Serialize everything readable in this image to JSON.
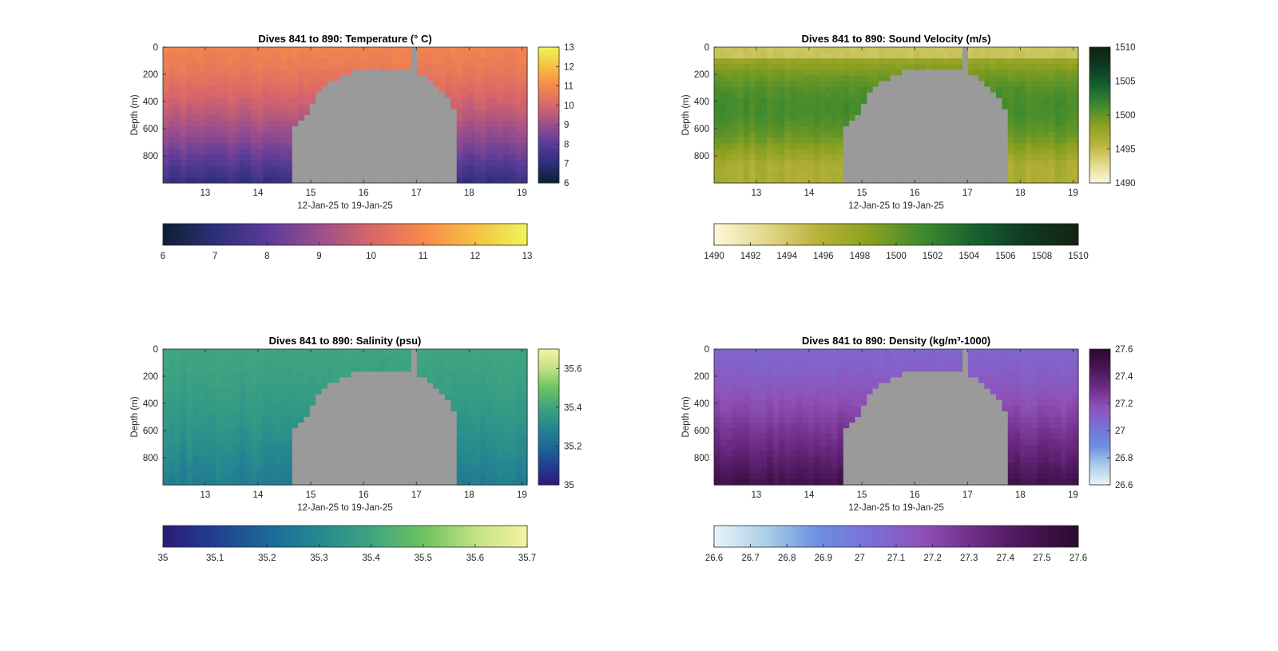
{
  "colors": {
    "background": "#ffffff",
    "nodata_gray": "#9a9a9a",
    "axis": "#262626"
  },
  "chart_data": [
    {
      "type": "heatmap",
      "title": "Dives 841 to 890: Temperature (° C)",
      "xlabel": "12-Jan-25 to 19-Jan-25",
      "ylabel": "Depth (m)",
      "xlim": [
        12.2,
        19.1
      ],
      "ylim": [
        0,
        1000
      ],
      "y_reversed": true,
      "xticks": [
        13,
        14,
        15,
        16,
        17,
        18,
        19
      ],
      "yticks": [
        0,
        200,
        400,
        600,
        800
      ],
      "colormap": [
        "#0d1f33",
        "#2c2f78",
        "#5a3b9a",
        "#9a4e8c",
        "#d8666a",
        "#f68a4a",
        "#f6c043",
        "#eef55a"
      ],
      "clim": [
        6,
        13
      ],
      "vertical_colorbar_ticks": [
        6,
        7,
        8,
        9,
        10,
        11,
        12,
        13
      ],
      "horizontal_colorbar_ticks": [
        6,
        7,
        8,
        9,
        10,
        11,
        12,
        13
      ],
      "surface_value": 10.8,
      "bottom_value": 7.2,
      "gap_start": 14.65,
      "gap_end": 17.75,
      "gap_top_depth": 160,
      "spike_x": 16.95
    },
    {
      "type": "heatmap",
      "title": "Dives 841 to 890: Sound Velocity (m/s)",
      "xlabel": "12-Jan-25 to 19-Jan-25",
      "ylabel": "Depth (m)",
      "xlim": [
        12.2,
        19.1
      ],
      "ylim": [
        0,
        1000
      ],
      "y_reversed": true,
      "xticks": [
        13,
        14,
        15,
        16,
        17,
        18,
        19
      ],
      "yticks": [
        0,
        200,
        400,
        600,
        800
      ],
      "colormap": [
        "#fdf8d8",
        "#e2d88a",
        "#b8b23a",
        "#8aa020",
        "#3f8a2e",
        "#16622f",
        "#0f3a22",
        "#132214"
      ],
      "clim": [
        1490,
        1510
      ],
      "vertical_colorbar_ticks": [
        1490,
        1495,
        1500,
        1505,
        1510
      ],
      "horizontal_colorbar_ticks": [
        1490,
        1492,
        1494,
        1496,
        1498,
        1500,
        1502,
        1504,
        1506,
        1508,
        1510
      ],
      "surface_value": 1496,
      "bottom_value": 1497.5,
      "mid_value": 1501.5,
      "gap_start": 14.65,
      "gap_end": 17.75,
      "gap_top_depth": 160,
      "spike_x": 16.95
    },
    {
      "type": "heatmap",
      "title": "Dives 841 to 890: Salinity (psu)",
      "xlabel": "12-Jan-25 to 19-Jan-25",
      "ylabel": "Depth (m)",
      "xlim": [
        12.2,
        19.1
      ],
      "ylim": [
        0,
        1000
      ],
      "y_reversed": true,
      "xticks": [
        13,
        14,
        15,
        16,
        17,
        18,
        19
      ],
      "yticks": [
        0,
        200,
        400,
        600,
        800
      ],
      "colormap": [
        "#2b1a75",
        "#223f92",
        "#1d6898",
        "#25888f",
        "#3ea480",
        "#6cc35f",
        "#c2e183",
        "#f6f3a4"
      ],
      "clim": [
        35,
        35.7
      ],
      "vertical_colorbar_ticks": [
        35,
        35.2,
        35.4,
        35.6
      ],
      "horizontal_colorbar_ticks": [
        35,
        35.1,
        35.2,
        35.3,
        35.4,
        35.5,
        35.6,
        35.7
      ],
      "surface_value": 35.4,
      "bottom_value": 35.26,
      "gap_start": 14.65,
      "gap_end": 17.75,
      "gap_top_depth": 160,
      "spike_x": 16.95
    },
    {
      "type": "heatmap",
      "title": "Dives 841 to 890: Density (kg/m³-1000)",
      "xlabel": "12-Jan-25 to 19-Jan-25",
      "ylabel": "Depth (m)",
      "xlim": [
        12.2,
        19.1
      ],
      "ylim": [
        0,
        1000
      ],
      "y_reversed": true,
      "xticks": [
        13,
        14,
        15,
        16,
        17,
        18,
        19
      ],
      "yticks": [
        0,
        200,
        400,
        600,
        800
      ],
      "colormap": [
        "#e9f4f8",
        "#a9cfe8",
        "#6c8fe0",
        "#7a6fd9",
        "#8e52b8",
        "#6e2c86",
        "#4a1657",
        "#290b2d"
      ],
      "clim": [
        26.6,
        27.6
      ],
      "vertical_colorbar_ticks": [
        26.6,
        26.8,
        27,
        27.2,
        27.4,
        27.6
      ],
      "horizontal_colorbar_ticks": [
        26.6,
        26.7,
        26.8,
        26.9,
        27,
        27.1,
        27.2,
        27.3,
        27.4,
        27.5,
        27.6
      ],
      "surface_value": 27.08,
      "bottom_value": 27.5,
      "gap_start": 14.65,
      "gap_end": 17.75,
      "gap_top_depth": 160,
      "spike_x": 16.95
    }
  ]
}
